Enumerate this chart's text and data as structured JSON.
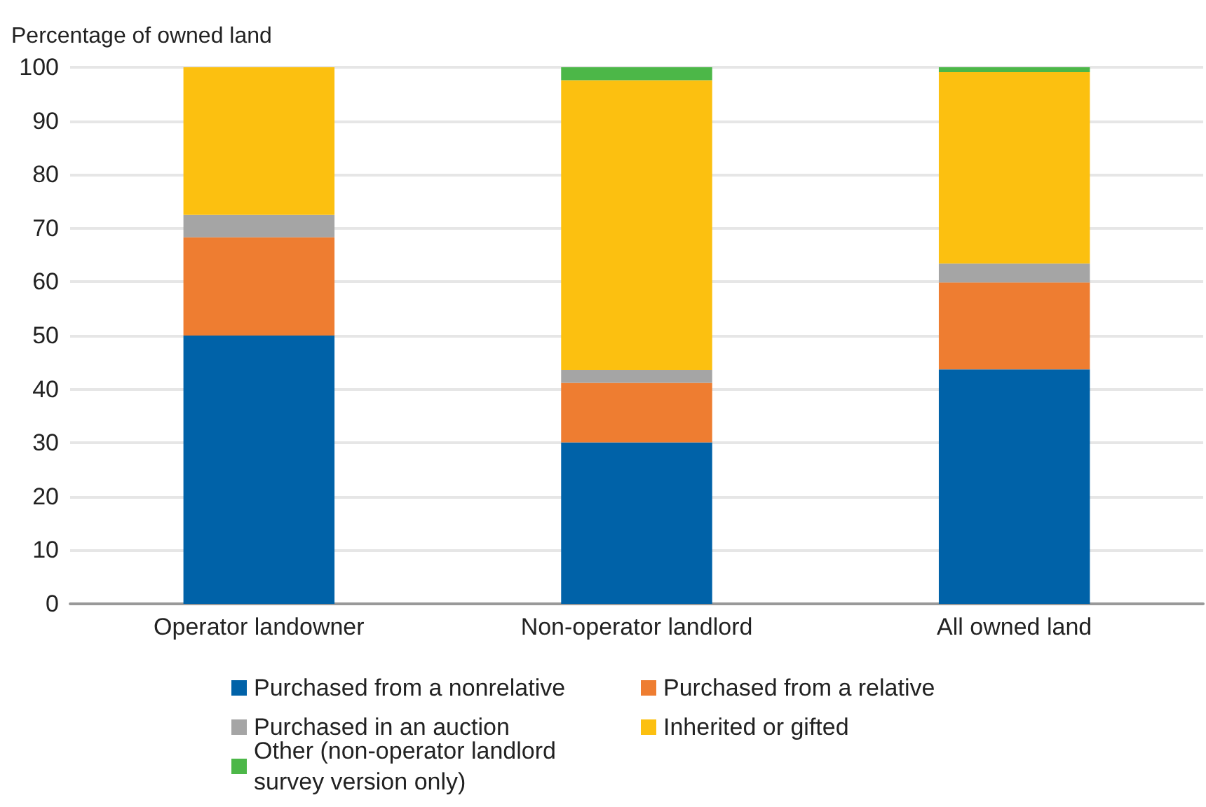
{
  "chart_data": {
    "type": "bar",
    "stacked": true,
    "ylabel": "Percentage of owned land",
    "categories": [
      "Operator landowner",
      "Non-operator landlord",
      "All owned land"
    ],
    "series": [
      {
        "name": "Purchased from a nonrelative",
        "color": "#0062a8",
        "values": [
          50,
          30.1,
          43.7
        ]
      },
      {
        "name": "Purchased from a relative",
        "color": "#ee7d31",
        "values": [
          18.3,
          11.1,
          16.2
        ]
      },
      {
        "name": "Purchased in an auction",
        "color": "#a5a5a5",
        "values": [
          4.2,
          2.4,
          3.5
        ]
      },
      {
        "name": "Inherited or gifted",
        "color": "#fcc010",
        "values": [
          27.5,
          54.0,
          35.7
        ]
      },
      {
        "name": "Other (non-operator landlord survey version only)",
        "color": "#4cb748",
        "values": [
          0,
          2.4,
          0.9
        ]
      }
    ],
    "ylim": [
      0,
      100
    ],
    "yticks": [
      0,
      10,
      20,
      30,
      40,
      50,
      60,
      70,
      80,
      90,
      100
    ],
    "grid": "y",
    "legend": "bottom"
  }
}
